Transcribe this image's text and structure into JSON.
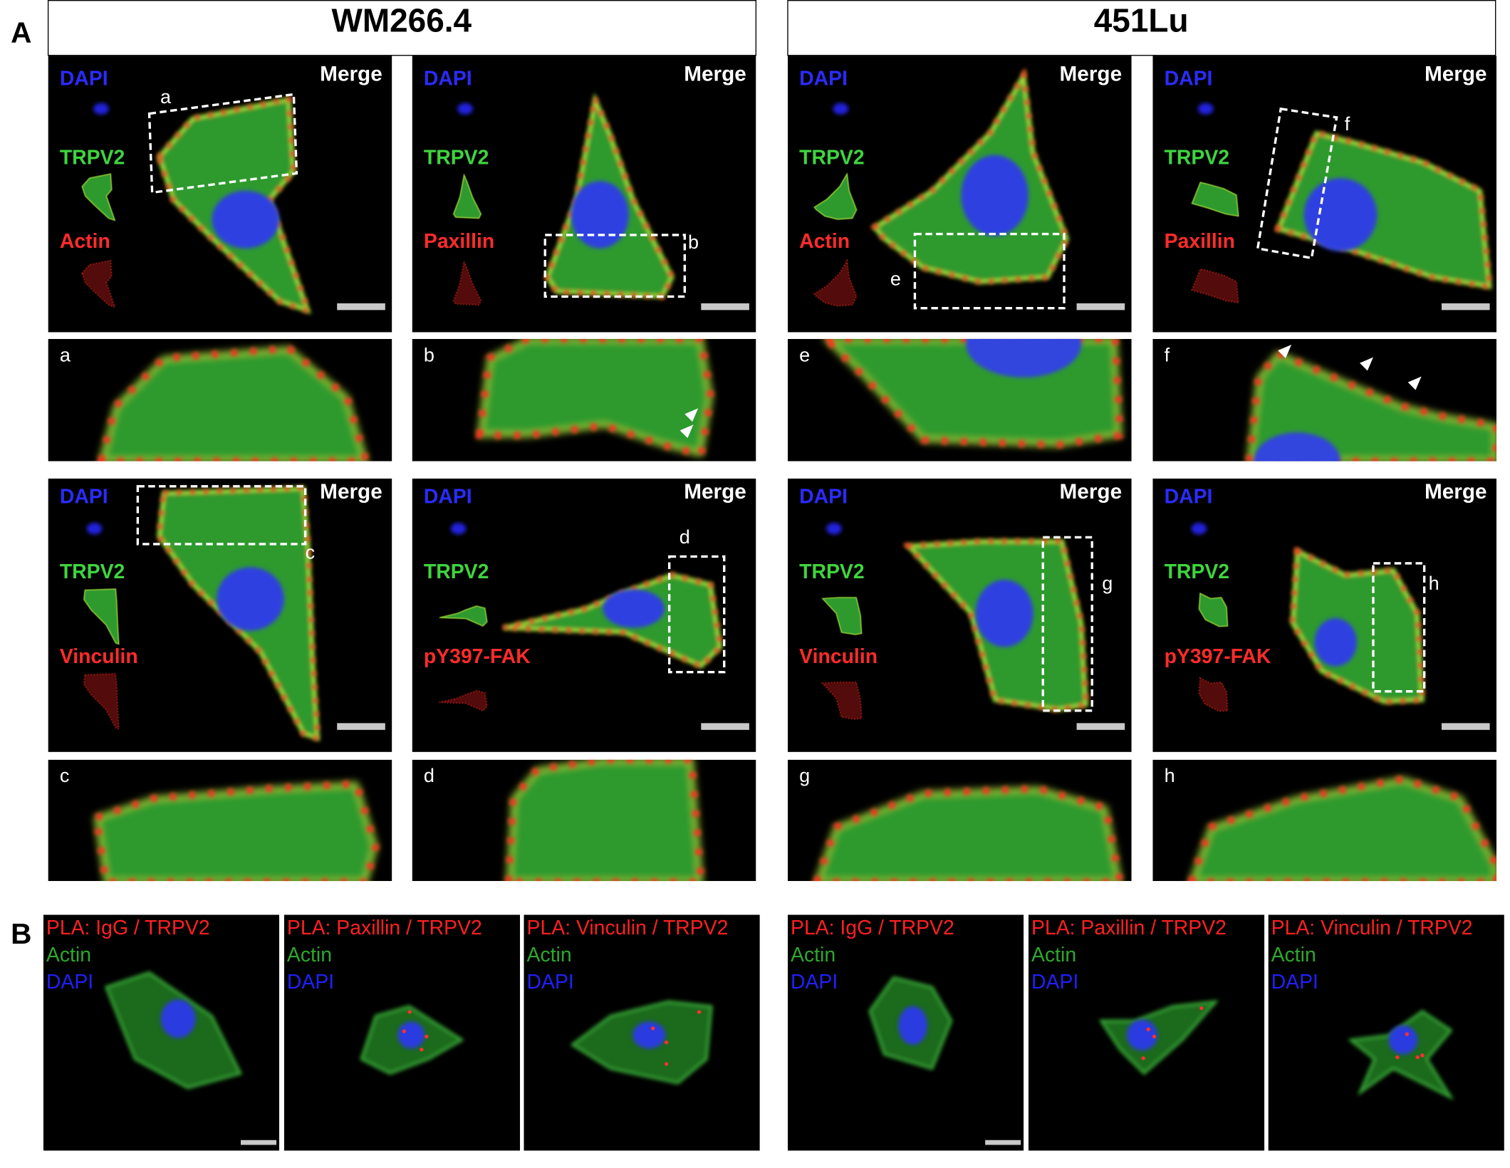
{
  "panel_a": {
    "label": "A",
    "groups": [
      {
        "title": "WM266.4"
      },
      {
        "title": "451Lu"
      }
    ],
    "images": [
      {
        "channels": [
          "DAPI",
          "TRPV2",
          "Actin"
        ],
        "merge": "Merge",
        "box_label": "a",
        "zoom_label": "a"
      },
      {
        "channels": [
          "DAPI",
          "TRPV2",
          "Paxillin"
        ],
        "merge": "Merge",
        "box_label": "b",
        "zoom_label": "b"
      },
      {
        "channels": [
          "DAPI",
          "TRPV2",
          "Actin"
        ],
        "merge": "Merge",
        "box_label": "e",
        "zoom_label": "e"
      },
      {
        "channels": [
          "DAPI",
          "TRPV2",
          "Paxillin"
        ],
        "merge": "Merge",
        "box_label": "f",
        "zoom_label": "f"
      },
      {
        "channels": [
          "DAPI",
          "TRPV2",
          "Vinculin"
        ],
        "merge": "Merge",
        "box_label": "c",
        "zoom_label": "c"
      },
      {
        "channels": [
          "DAPI",
          "TRPV2",
          "pY397-FAK"
        ],
        "merge": "Merge",
        "box_label": "d",
        "zoom_label": "d"
      },
      {
        "channels": [
          "DAPI",
          "TRPV2",
          "Vinculin"
        ],
        "merge": "Merge",
        "box_label": "g",
        "zoom_label": "g"
      },
      {
        "channels": [
          "DAPI",
          "TRPV2",
          "pY397-FAK"
        ],
        "merge": "Merge",
        "box_label": "h",
        "zoom_label": "h"
      }
    ]
  },
  "panel_b": {
    "label": "B",
    "images": [
      {
        "lines": [
          "PLA: IgG / TRPV2",
          "Actin",
          "DAPI"
        ]
      },
      {
        "lines": [
          "PLA: Paxillin / TRPV2",
          "Actin",
          "DAPI"
        ]
      },
      {
        "lines": [
          "PLA: Vinculin / TRPV2",
          "Actin",
          "DAPI"
        ]
      },
      {
        "lines": [
          "PLA: IgG / TRPV2",
          "Actin",
          "DAPI"
        ]
      },
      {
        "lines": [
          "PLA: Paxillin / TRPV2",
          "Actin",
          "DAPI"
        ]
      },
      {
        "lines": [
          "PLA: Vinculin / TRPV2",
          "Actin",
          "DAPI"
        ]
      }
    ]
  }
}
